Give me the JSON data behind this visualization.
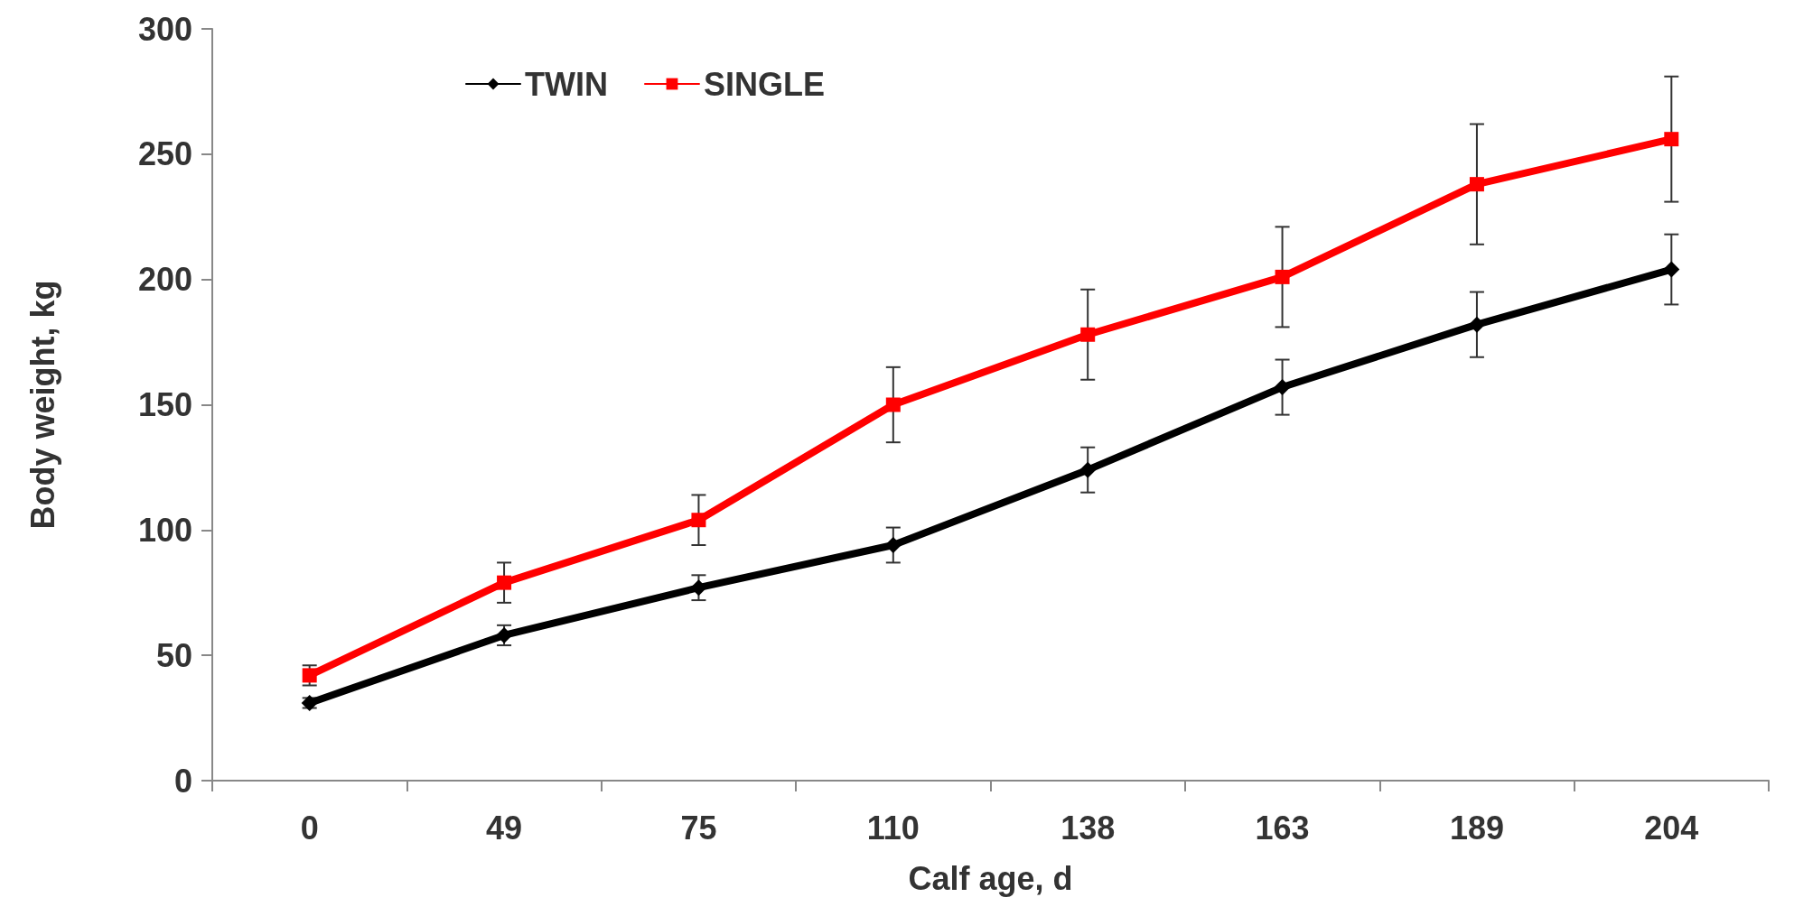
{
  "chart_data": {
    "type": "line",
    "xlabel": "Calf age, d",
    "ylabel": "Body weight, kg",
    "categories": [
      "0",
      "49",
      "75",
      "110",
      "138",
      "163",
      "189",
      "204"
    ],
    "series": [
      {
        "name": "TWIN",
        "color": "#000000",
        "marker": "diamond",
        "values": [
          31,
          58,
          77,
          94,
          124,
          157,
          182,
          204
        ],
        "errors": [
          2,
          4,
          5,
          7,
          9,
          11,
          13,
          14
        ]
      },
      {
        "name": "SINGLE",
        "color": "#ff0000",
        "marker": "square",
        "values": [
          42,
          79,
          104,
          150,
          178,
          201,
          238,
          256
        ],
        "errors": [
          4,
          8,
          10,
          15,
          18,
          20,
          24,
          25
        ]
      }
    ],
    "ylim": [
      0,
      300
    ],
    "yticks": [
      0,
      50,
      100,
      150,
      200,
      250,
      300
    ],
    "grid": false,
    "legend": "top left",
    "line_style": "solid"
  }
}
